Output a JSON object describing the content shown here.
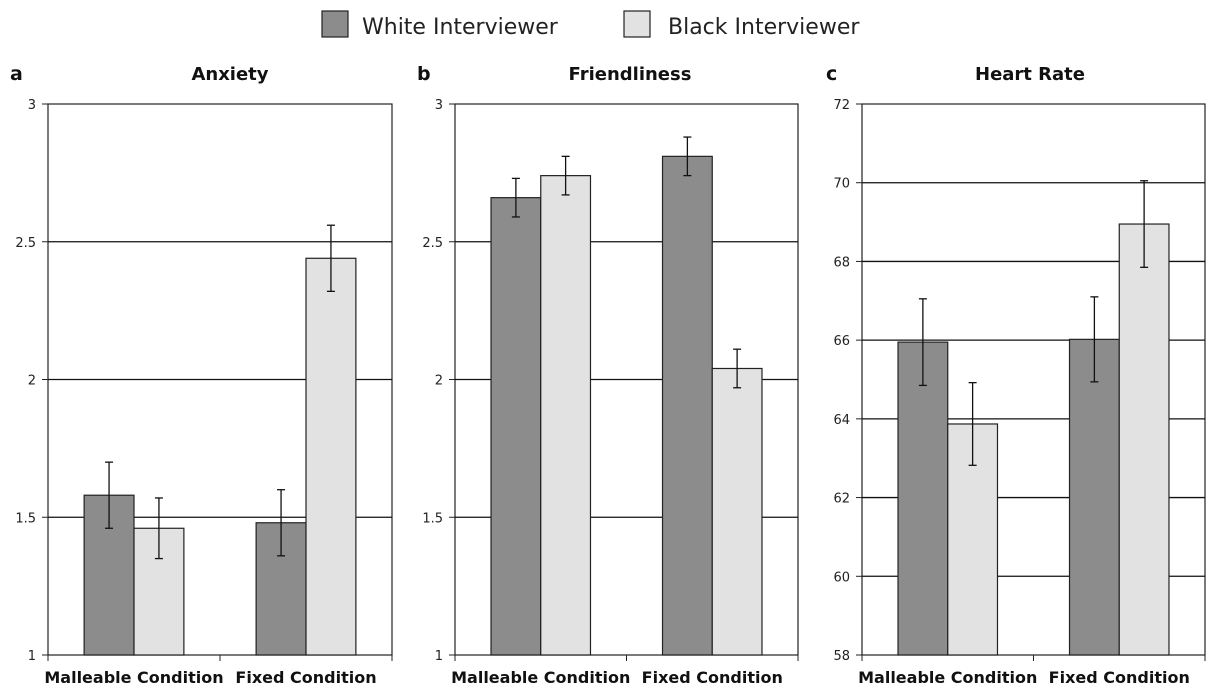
{
  "legend": {
    "items": [
      {
        "name": "White Interviewer",
        "color": "#8c8c8c"
      },
      {
        "name": "Black Interviewer",
        "color": "#e2e2e2"
      }
    ]
  },
  "chart_data": [
    {
      "type": "bar",
      "panel_letter": "a",
      "title": "Anxiety",
      "categories": [
        "Malleable Condition",
        "Fixed Condition"
      ],
      "series": [
        {
          "name": "White Interviewer",
          "values": [
            1.58,
            1.48
          ],
          "error": [
            0.12,
            0.12
          ]
        },
        {
          "name": "Black Interviewer",
          "values": [
            1.46,
            2.44
          ],
          "error": [
            0.11,
            0.12
          ]
        }
      ],
      "ylim": [
        1,
        3
      ],
      "yticks": [
        1,
        1.5,
        2,
        2.5,
        3
      ],
      "ytick_labels": [
        "1",
        "1.5",
        "2",
        "2.5",
        "3"
      ],
      "grid": true
    },
    {
      "type": "bar",
      "panel_letter": "b",
      "title": "Friendliness",
      "categories": [
        "Malleable Condition",
        "Fixed Condition"
      ],
      "series": [
        {
          "name": "White Interviewer",
          "values": [
            2.66,
            2.81
          ],
          "error": [
            0.07,
            0.07
          ]
        },
        {
          "name": "Black Interviewer",
          "values": [
            2.74,
            2.04
          ],
          "error": [
            0.07,
            0.07
          ]
        }
      ],
      "ylim": [
        1,
        3
      ],
      "yticks": [
        1,
        1.5,
        2,
        2.5,
        3
      ],
      "ytick_labels": [
        "1",
        "1.5",
        "2",
        "2.5",
        "3"
      ],
      "grid": true
    },
    {
      "type": "bar",
      "panel_letter": "c",
      "title": "Heart Rate",
      "categories": [
        "Malleable Condition",
        "Fixed Condition"
      ],
      "series": [
        {
          "name": "White Interviewer",
          "values": [
            65.95,
            66.02
          ],
          "error": [
            1.1,
            1.08
          ]
        },
        {
          "name": "Black Interviewer",
          "values": [
            63.87,
            68.95
          ],
          "error": [
            1.05,
            1.1
          ]
        }
      ],
      "ylim": [
        58,
        72
      ],
      "yticks": [
        58,
        60,
        62,
        64,
        66,
        68,
        70,
        72
      ],
      "ytick_labels": [
        "58",
        "60",
        "62",
        "64",
        "66",
        "68",
        "70",
        "72"
      ],
      "grid": true
    }
  ]
}
